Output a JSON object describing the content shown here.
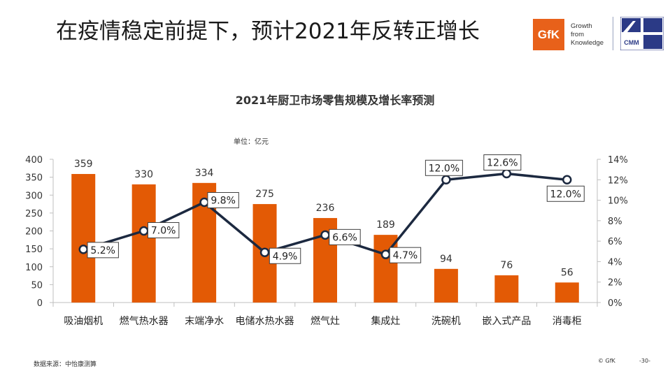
{
  "slide": {
    "title": "在疫情稳定前提下，预计2021年反转正增长",
    "source": "数据来源：中怡康测算",
    "copyright": "© GfK",
    "page_number": "-30-"
  },
  "brand": {
    "logo_text": "GfK",
    "tagline": [
      "Growth",
      "from",
      "Knowledge"
    ],
    "partner_logo_text": "CMM",
    "accent_color": "#e8611a"
  },
  "chart_data": {
    "type": "bar",
    "title": "2021年厨卫市场零售规模及增长率预测",
    "unit_label": "单位：亿元",
    "categories": [
      "吸油烟机",
      "燃气热水器",
      "末端净水",
      "电储水热水器",
      "燃气灶",
      "集成灶",
      "洗碗机",
      "嵌入式产品",
      "消毒柜"
    ],
    "series": [
      {
        "type": "bar",
        "axis": "left",
        "color": "#e35a05",
        "values": [
          359,
          330,
          334,
          275,
          236,
          189,
          94,
          76,
          56
        ],
        "labels": [
          "359",
          "330",
          "334",
          "275",
          "236",
          "189",
          "94",
          "76",
          "56"
        ]
      },
      {
        "type": "line",
        "axis": "right",
        "color": "#1c2940",
        "values": [
          5.2,
          7.0,
          9.8,
          4.9,
          6.6,
          4.7,
          12.0,
          12.6,
          12.0
        ],
        "labels": [
          "5.2%",
          "7.0%",
          "9.8%",
          "4.9%",
          "6.6%",
          "4.7%",
          "12.0%",
          "12.6%",
          "12.0%"
        ]
      }
    ],
    "ylim": [
      0,
      400
    ],
    "y_ticks": [
      "0",
      "50",
      "100",
      "150",
      "200",
      "250",
      "300",
      "350",
      "400"
    ],
    "y2lim": [
      0,
      14
    ],
    "y2_ticks": [
      "0%",
      "2%",
      "4%",
      "6%",
      "8%",
      "10%",
      "12%",
      "14%"
    ],
    "grid": false,
    "legend": "none"
  }
}
